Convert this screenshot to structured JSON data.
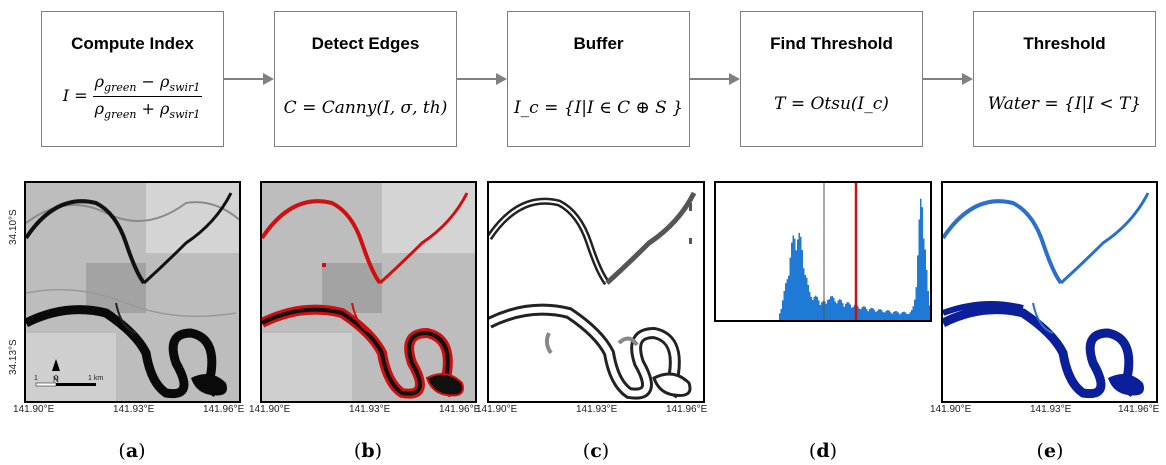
{
  "boxes": [
    {
      "title": "Compute Index"
    },
    {
      "title": "Detect Edges",
      "formula": "C = Canny(I, σ, th)"
    },
    {
      "title": "Buffer",
      "formula": "I_c = {I|I ∈ C ⊕ S }"
    },
    {
      "title": "Find Threshold",
      "formula": "T = Otsu(I_c)"
    },
    {
      "title": "Threshold",
      "formula": "Water = {I|I < T}"
    }
  ],
  "index_formula": {
    "lhs": "I =",
    "rho": "ρ",
    "green": "green",
    "swir": "swir1",
    "minus": " − ",
    "plus": " + "
  },
  "axes": {
    "lat_top": "34.10°S",
    "lat_bottom": "34.13°S",
    "lon": [
      "141.90°E",
      "141.93°E",
      "141.96°E"
    ]
  },
  "scalebar": {
    "labels": [
      "1",
      "0",
      "1 km"
    ],
    "north": "N"
  },
  "captions": [
    "a",
    "b",
    "c",
    "d",
    "e"
  ],
  "colors": {
    "box_border": "#7f7f7f",
    "arrow": "#808080",
    "edge_red": "#d01010",
    "histogram": "#1f7ad6",
    "water_light": "#2a6fd0",
    "water_dark": "#0b1f9a"
  }
}
